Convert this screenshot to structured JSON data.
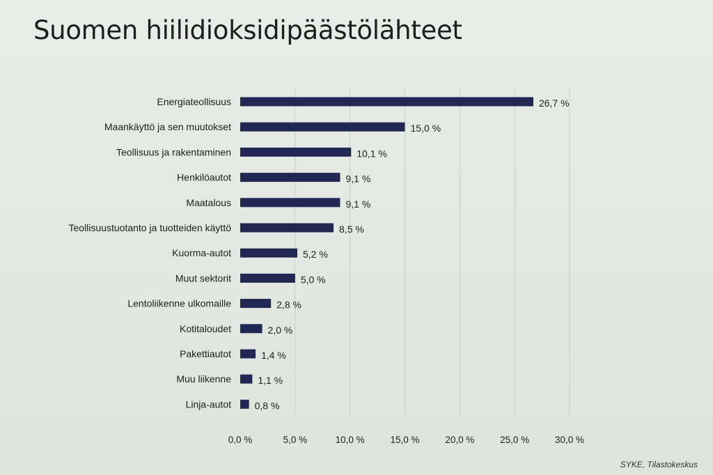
{
  "title": "Suomen hiilidioksidipäästölähteet",
  "source": "SYKE, Tilastokeskus",
  "colors": {
    "bar": "#1f2752",
    "text": "#1d1d1f",
    "grid": "#c9cec6"
  },
  "chart_data": {
    "type": "bar",
    "orientation": "horizontal",
    "categories": [
      "Energiateollisuus",
      "Maankäyttö ja sen muutokset",
      "Teollisuus ja rakentaminen",
      "Henkilöautot",
      "Maatalous",
      "Teollisuustuotanto ja tuotteiden käyttö",
      "Kuorma-autot",
      "Muut sektorit",
      "Lentoliikenne ulkomaille",
      "Kotitaloudet",
      "Pakettiautot",
      "Muu liikenne",
      "Linja-autot"
    ],
    "values": [
      26.7,
      15.0,
      10.1,
      9.1,
      9.1,
      8.5,
      5.2,
      5.0,
      2.8,
      2.0,
      1.4,
      1.1,
      0.8
    ],
    "value_labels": [
      "26,7 %",
      "15,0 %",
      "10,1 %",
      "9,1 %",
      "9,1 %",
      "8,5 %",
      "5,2 %",
      "5,0 %",
      "2,8 %",
      "2,0 %",
      "1,4 %",
      "1,1 %",
      "0,8 %"
    ],
    "xlim": [
      0,
      30
    ],
    "x_ticks": [
      0,
      5,
      10,
      15,
      20,
      25,
      30
    ],
    "x_tick_labels": [
      "0,0 %",
      "5,0 %",
      "10,0 %",
      "15,0 %",
      "20,0 %",
      "25,0 %",
      "30,0 %"
    ],
    "grid": true
  }
}
